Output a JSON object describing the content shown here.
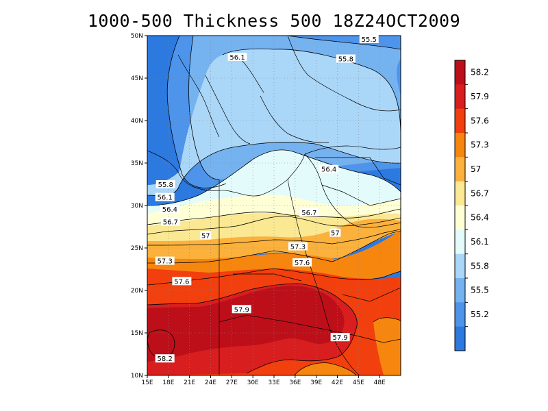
{
  "title": "1000-500 Thickness 500 18Z24OCT2009",
  "map": {
    "lon_range": [
      15,
      51
    ],
    "lat_range": [
      10,
      50
    ],
    "lon_ticks": [
      "15E",
      "18E",
      "21E",
      "24E",
      "27E",
      "30E",
      "33E",
      "36E",
      "39E",
      "42E",
      "45E",
      "48E"
    ],
    "lat_ticks": [
      "10N",
      "15N",
      "20N",
      "25N",
      "30N",
      "35N",
      "40N",
      "45N",
      "50N"
    ],
    "grid": "dotted"
  },
  "contour_labels": [
    {
      "text": "55.5",
      "lon": 46.5,
      "lat": 49.6
    },
    {
      "text": "55.8",
      "lon": 43.2,
      "lat": 47.3
    },
    {
      "text": "56.1",
      "lon": 27.8,
      "lat": 47.5
    },
    {
      "text": "55.8",
      "lon": 17.6,
      "lat": 32.5
    },
    {
      "text": "56.1",
      "lon": 17.5,
      "lat": 31.0
    },
    {
      "text": "56.4",
      "lon": 18.2,
      "lat": 29.6
    },
    {
      "text": "56.7",
      "lon": 18.3,
      "lat": 28.1
    },
    {
      "text": "57",
      "lon": 23.3,
      "lat": 26.5
    },
    {
      "text": "57.3",
      "lon": 17.5,
      "lat": 23.5
    },
    {
      "text": "57.6",
      "lon": 19.9,
      "lat": 21.1
    },
    {
      "text": "57.9",
      "lon": 28.4,
      "lat": 17.8
    },
    {
      "text": "58.2",
      "lon": 17.5,
      "lat": 12.0
    },
    {
      "text": "56.4",
      "lon": 40.8,
      "lat": 34.3
    },
    {
      "text": "56.7",
      "lon": 38.0,
      "lat": 29.2
    },
    {
      "text": "57",
      "lon": 41.7,
      "lat": 26.8
    },
    {
      "text": "57.3",
      "lon": 36.4,
      "lat": 25.2
    },
    {
      "text": "57.6",
      "lon": 37.0,
      "lat": 23.3
    },
    {
      "text": "57.9",
      "lon": 42.4,
      "lat": 14.5
    }
  ],
  "colorbar": {
    "labels": [
      "58.2",
      "57.9",
      "57.6",
      "57.3",
      "57",
      "56.7",
      "56.4",
      "56.1",
      "55.8",
      "55.5",
      "55.2"
    ],
    "colors": [
      "#bd0f1a",
      "#d81e1e",
      "#f23f0e",
      "#f7860f",
      "#fbb13b",
      "#fbe893",
      "#ffffd6",
      "#e4fbfb",
      "#aad6f8",
      "#75b2f0",
      "#4d94ea",
      "#2c79e0"
    ]
  }
}
